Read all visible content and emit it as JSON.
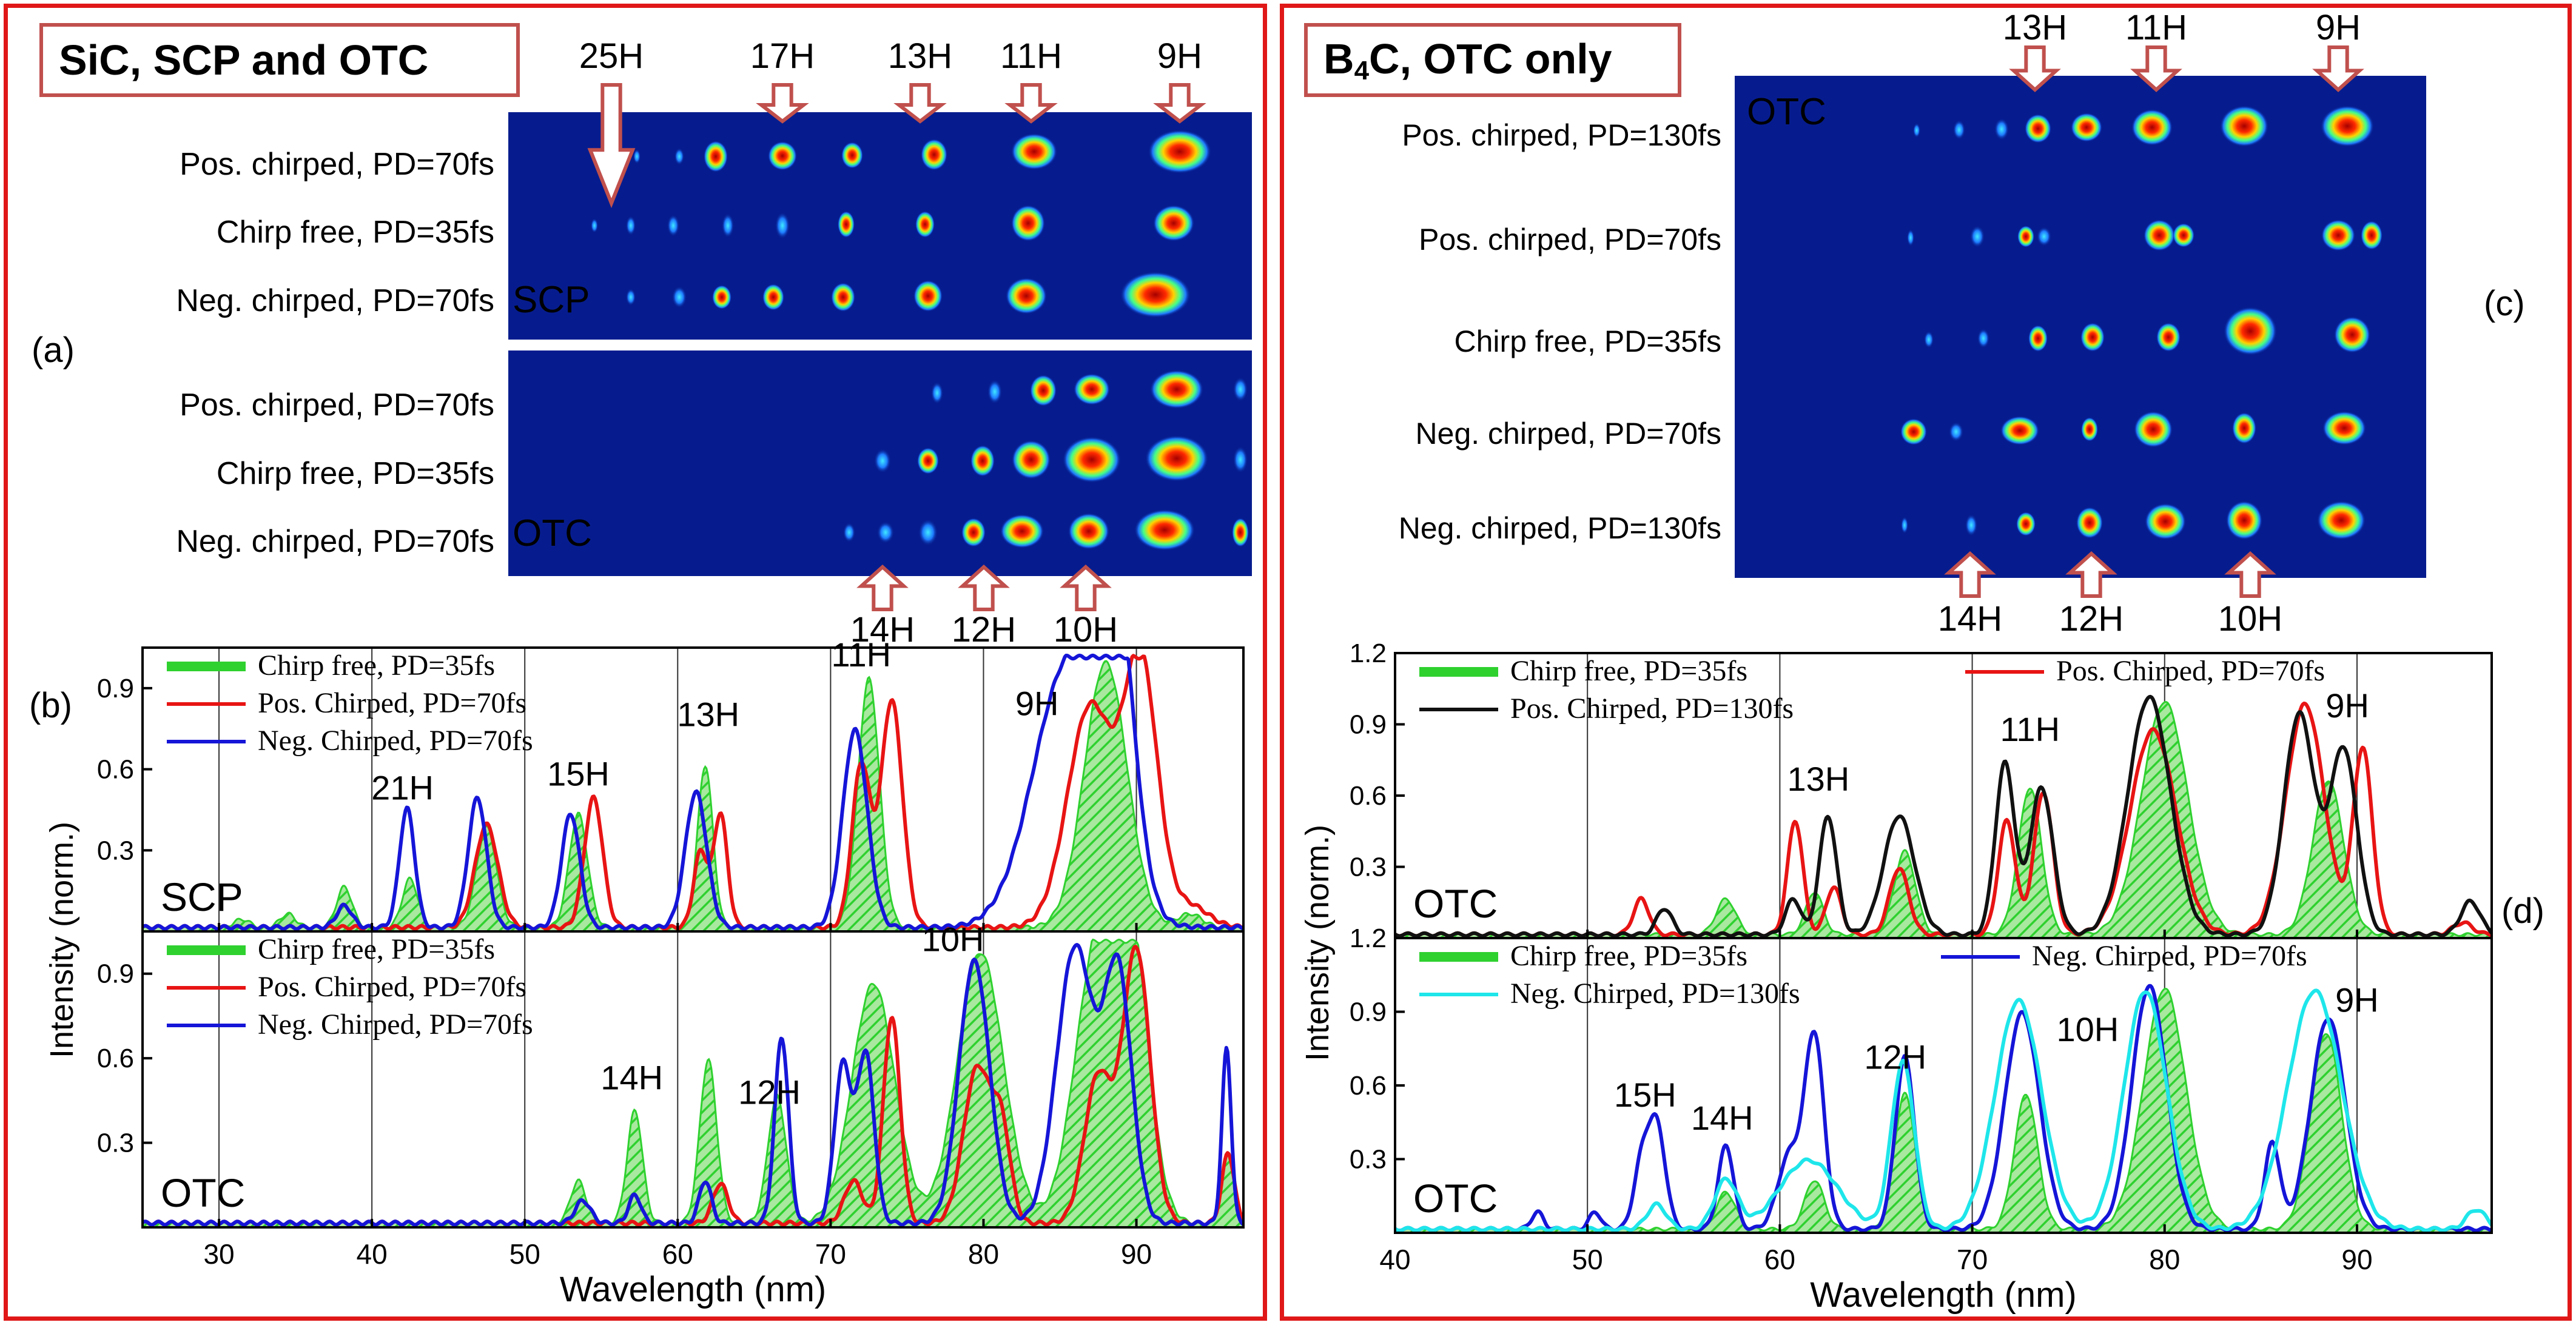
{
  "left_panel": {
    "title": "SiC, SCP and OTC"
  },
  "right_panel": {
    "title_main": "B",
    "title_sub": "4",
    "title_rest": "C, OTC only"
  },
  "colors": {
    "frame": "#e01818",
    "title_border": "#c0504d",
    "arrow": "#c0504d",
    "green": "#2fd12f",
    "red": "#e81414",
    "blue": "#1515d8",
    "black": "#111111",
    "cyan": "#1ee6ea",
    "image_bg": "#061c8e"
  },
  "images": {
    "a": {
      "label": "(a)",
      "top_arrows": [
        "25H",
        "17H",
        "13H",
        "11H",
        "9H"
      ],
      "bottom_arrows": [
        "14H",
        "12H",
        "10H"
      ],
      "scp_tag": "SCP",
      "otc_tag": "OTC",
      "scp_rows": [
        "Pos. chirped, PD=70fs",
        "Chirp free, PD=35fs",
        "Neg. chirped, PD=70fs"
      ],
      "otc_rows": [
        "Pos. chirped, PD=70fs",
        "Chirp free, PD=35fs",
        "Neg. chirped, PD=70fs"
      ]
    },
    "c": {
      "label": "(c)",
      "tag": "OTC",
      "top_arrows": [
        "13H",
        "11H",
        "9H"
      ],
      "bottom_arrows": [
        "14H",
        "12H",
        "10H"
      ],
      "rows": [
        "Pos. chirped, PD=130fs",
        "Pos. chirped, PD=70fs",
        "Chirp free, PD=35fs",
        "Neg. chirped, PD=70fs",
        "Neg. chirped, PD=130fs"
      ]
    }
  },
  "chart_data": [
    {
      "id": "b-top",
      "panel_label": "(b)",
      "type": "line",
      "tag": "SCP",
      "xlim": [
        25,
        97
      ],
      "ylim": [
        0,
        1.05
      ],
      "yticks": [
        "0.3",
        "0.6",
        "0.9"
      ],
      "xlabel": "",
      "ylabel": "Intensity (norm.)",
      "grid_x": [
        30,
        40,
        50,
        60,
        70,
        80,
        90
      ],
      "harmonic_labels": [
        {
          "text": "21H",
          "x": 42
        },
        {
          "text": "15H",
          "x": 53.5
        },
        {
          "text": "13H",
          "x": 62
        },
        {
          "text": "11H",
          "x": 72
        },
        {
          "text": "9H",
          "x": 83.5
        }
      ],
      "legend": [
        {
          "name": "Chirp free, PD=35fs",
          "color": "green"
        },
        {
          "name": "Pos. Chirped, PD=70fs",
          "color": "red"
        },
        {
          "name": "Neg. Chirped, PD=70fs",
          "color": "blue"
        }
      ],
      "series": [
        {
          "name": "Chirp free, PD=35fs",
          "color": "green",
          "fill": true,
          "peaks": [
            [
              31.5,
              0.03,
              0.5
            ],
            [
              34.5,
              0.05,
              0.5
            ],
            [
              38.2,
              0.15,
              0.5
            ],
            [
              42.5,
              0.18,
              0.5
            ],
            [
              47.5,
              0.37,
              0.65
            ],
            [
              53.5,
              0.42,
              0.6
            ],
            [
              61.8,
              0.6,
              0.5
            ],
            [
              72.5,
              0.92,
              0.7
            ],
            [
              88,
              0.98,
              1.4
            ],
            [
              93.5,
              0.05,
              0.8
            ]
          ]
        },
        {
          "name": "Pos. Chirped, PD=70fs",
          "color": "red",
          "fill": false,
          "peaks": [
            [
              47.5,
              0.38,
              0.75
            ],
            [
              54.5,
              0.48,
              0.6
            ],
            [
              61.5,
              0.28,
              0.45
            ],
            [
              62.8,
              0.42,
              0.45
            ],
            [
              72,
              0.6,
              0.6
            ],
            [
              74,
              0.84,
              0.7
            ],
            [
              87,
              0.82,
              1.5
            ],
            [
              90.3,
              0.96,
              1.1
            ],
            [
              93.5,
              0.08,
              1.2
            ]
          ]
        },
        {
          "name": "Neg. Chirped, PD=70fs",
          "color": "blue",
          "fill": false,
          "peaks": [
            [
              38.2,
              0.08,
              0.5
            ],
            [
              42.3,
              0.44,
              0.5
            ],
            [
              46.9,
              0.48,
              0.6
            ],
            [
              53,
              0.42,
              0.6
            ],
            [
              61.2,
              0.5,
              0.7
            ],
            [
              71.6,
              0.73,
              0.8
            ],
            [
              85.6,
              0.98,
              2.3
            ],
            [
              88.6,
              0.99,
              1.2
            ]
          ]
        }
      ]
    },
    {
      "id": "b-bottom",
      "type": "line",
      "tag": "OTC",
      "xlim": [
        25,
        97
      ],
      "ylim": [
        0,
        1.05
      ],
      "yticks": [
        "0.3",
        "0.6",
        "0.9"
      ],
      "xticks": [
        "30",
        "40",
        "50",
        "60",
        "70",
        "80",
        "90"
      ],
      "xlabel": "Wavelength (nm)",
      "ylabel": "Intensity (norm.)",
      "grid_x": [
        30,
        40,
        50,
        60,
        70,
        80,
        90
      ],
      "harmonic_labels": [
        {
          "text": "14H",
          "x": 57
        },
        {
          "text": "12H",
          "x": 66
        },
        {
          "text": "10H",
          "x": 78
        }
      ],
      "legend": [
        {
          "name": "Chirp free, PD=35fs",
          "color": "green"
        },
        {
          "name": "Pos. Chirped, PD=70fs",
          "color": "red"
        },
        {
          "name": "Neg. Chirped, PD=70fs",
          "color": "blue"
        }
      ],
      "series": [
        {
          "name": "Chirp free, PD=35fs",
          "color": "green",
          "fill": true,
          "peaks": [
            [
              53.5,
              0.15,
              0.5
            ],
            [
              57.2,
              0.4,
              0.5
            ],
            [
              62,
              0.58,
              0.55
            ],
            [
              66.5,
              0.45,
              0.6
            ],
            [
              72.8,
              0.85,
              1.4
            ],
            [
              79.8,
              0.96,
              1.5
            ],
            [
              87.3,
              0.9,
              1.4
            ],
            [
              89.6,
              0.96,
              1.2
            ],
            [
              96,
              0.25,
              0.4
            ]
          ]
        },
        {
          "name": "Pos. Chirped, PD=70fs",
          "color": "red",
          "fill": false,
          "peaks": [
            [
              62.8,
              0.14,
              0.5
            ],
            [
              71.5,
              0.15,
              0.6
            ],
            [
              74,
              0.73,
              0.55
            ],
            [
              79.6,
              0.55,
              0.9
            ],
            [
              81.2,
              0.3,
              0.6
            ],
            [
              87.5,
              0.52,
              0.9
            ],
            [
              90,
              0.97,
              0.9
            ],
            [
              96,
              0.25,
              0.4
            ]
          ]
        },
        {
          "name": "Neg. Chirped, PD=70fs",
          "color": "blue",
          "fill": false,
          "peaks": [
            [
              53.8,
              0.08,
              0.5
            ],
            [
              57.2,
              0.1,
              0.4
            ],
            [
              61.8,
              0.15,
              0.4
            ],
            [
              66.8,
              0.66,
              0.45
            ],
            [
              70.8,
              0.56,
              0.55
            ],
            [
              72.3,
              0.6,
              0.55
            ],
            [
              79.4,
              0.93,
              1.0
            ],
            [
              86,
              0.98,
              1.2
            ],
            [
              88.8,
              0.88,
              0.9
            ],
            [
              95.9,
              0.62,
              0.3
            ]
          ]
        }
      ]
    },
    {
      "id": "d-top",
      "panel_label": "(d)",
      "type": "line",
      "tag": "OTC",
      "xlim": [
        40,
        97
      ],
      "ylim": [
        0,
        1.2
      ],
      "yticks": [
        "0.3",
        "0.6",
        "0.9",
        "1.2"
      ],
      "xlabel": "",
      "ylabel": "Intensity (norm.)",
      "grid_x": [
        50,
        60,
        70,
        80,
        90
      ],
      "harmonic_labels": [
        {
          "text": "13H",
          "x": 62
        },
        {
          "text": "11H",
          "x": 73
        },
        {
          "text": "9H",
          "x": 89.5
        }
      ],
      "legend": [
        {
          "name": "Chirp free, PD=35fs",
          "color": "green"
        },
        {
          "name": "Pos. Chirped, PD=70fs",
          "color": "red"
        },
        {
          "name": "Pos. Chirped, PD=130fs",
          "color": "black"
        }
      ],
      "series": [
        {
          "name": "Chirp free, PD=35fs",
          "color": "green",
          "fill": true,
          "peaks": [
            [
              57.2,
              0.15,
              0.5
            ],
            [
              61.8,
              0.18,
              0.45
            ],
            [
              66.5,
              0.35,
              0.55
            ],
            [
              73,
              0.62,
              0.6
            ],
            [
              80,
              0.98,
              1.2
            ],
            [
              88.5,
              0.65,
              0.8
            ]
          ]
        },
        {
          "name": "Pos. Chirped, PD=70fs",
          "color": "red",
          "fill": false,
          "peaks": [
            [
              52.8,
              0.15,
              0.4
            ],
            [
              60.8,
              0.48,
              0.4
            ],
            [
              62.8,
              0.2,
              0.4
            ],
            [
              66.2,
              0.28,
              0.5
            ],
            [
              71.8,
              0.48,
              0.45
            ],
            [
              73.7,
              0.6,
              0.5
            ],
            [
              79.4,
              0.86,
              1.2
            ],
            [
              87.3,
              0.97,
              1.0
            ],
            [
              90.3,
              0.78,
              0.5
            ],
            [
              95.5,
              0.05,
              0.5
            ]
          ]
        },
        {
          "name": "Pos. Chirped, PD=130fs",
          "color": "black",
          "fill": false,
          "peaks": [
            [
              54,
              0.11,
              0.4
            ],
            [
              60.7,
              0.15,
              0.4
            ],
            [
              62.5,
              0.5,
              0.45
            ],
            [
              66.2,
              0.5,
              0.8
            ],
            [
              71.7,
              0.72,
              0.5
            ],
            [
              73.6,
              0.62,
              0.6
            ],
            [
              79.2,
              1.0,
              1.1
            ],
            [
              87,
              0.93,
              0.8
            ],
            [
              89.3,
              0.78,
              0.7
            ],
            [
              95.9,
              0.14,
              0.5
            ]
          ]
        }
      ]
    },
    {
      "id": "d-bottom",
      "type": "line",
      "tag": "OTC",
      "xlim": [
        40,
        97
      ],
      "ylim": [
        0,
        1.2
      ],
      "yticks": [
        "0.3",
        "0.6",
        "0.9",
        "1.2"
      ],
      "xticks": [
        "40",
        "50",
        "60",
        "70",
        "80",
        "90"
      ],
      "xlabel": "Wavelength (nm)",
      "ylabel": "Intensity (norm.)",
      "grid_x": [
        50,
        60,
        70,
        80,
        90
      ],
      "harmonic_labels": [
        {
          "text": "15H",
          "x": 53
        },
        {
          "text": "14H",
          "x": 57
        },
        {
          "text": "12H",
          "x": 66
        },
        {
          "text": "10H",
          "x": 76
        },
        {
          "text": "9H",
          "x": 90
        }
      ],
      "legend": [
        {
          "name": "Chirp free, PD=35fs",
          "color": "green"
        },
        {
          "name": "Neg. Chirped, PD=70fs",
          "color": "blue"
        },
        {
          "name": "Neg. Chirped, PD=130fs",
          "color": "cyan"
        }
      ],
      "series": [
        {
          "name": "Chirp free, PD=35fs",
          "color": "green",
          "fill": true,
          "peaks": [
            [
              57.2,
              0.15,
              0.5
            ],
            [
              61.8,
              0.2,
              0.5
            ],
            [
              66.5,
              0.55,
              0.55
            ],
            [
              72.8,
              0.55,
              0.6
            ],
            [
              80,
              0.98,
              1.1
            ],
            [
              88.4,
              0.8,
              0.8
            ]
          ]
        },
        {
          "name": "Neg. Chirped, PD=70fs",
          "color": "blue",
          "fill": false,
          "peaks": [
            [
              47.4,
              0.07,
              0.3
            ],
            [
              50.4,
              0.07,
              0.3
            ],
            [
              52.8,
              0.25,
              0.4
            ],
            [
              53.6,
              0.42,
              0.45
            ],
            [
              57.2,
              0.34,
              0.4
            ],
            [
              60.5,
              0.3,
              0.6
            ],
            [
              61.8,
              0.78,
              0.5
            ],
            [
              66.5,
              0.7,
              0.5
            ],
            [
              72.6,
              0.88,
              0.9
            ],
            [
              79.2,
              0.99,
              0.9
            ],
            [
              85.6,
              0.35,
              0.4
            ],
            [
              88.5,
              0.86,
              0.9
            ]
          ]
        },
        {
          "name": "Neg. Chirped, PD=130fs",
          "color": "cyan",
          "fill": false,
          "peaks": [
            [
              53.6,
              0.1,
              0.5
            ],
            [
              57.2,
              0.2,
              0.6
            ],
            [
              61.5,
              0.28,
              1.5
            ],
            [
              66.4,
              0.68,
              0.6
            ],
            [
              72.4,
              0.93,
              1.2
            ],
            [
              79,
              0.97,
              1.1
            ],
            [
              87.8,
              0.97,
              1.4
            ],
            [
              96.2,
              0.08,
              0.5
            ]
          ]
        }
      ]
    }
  ]
}
